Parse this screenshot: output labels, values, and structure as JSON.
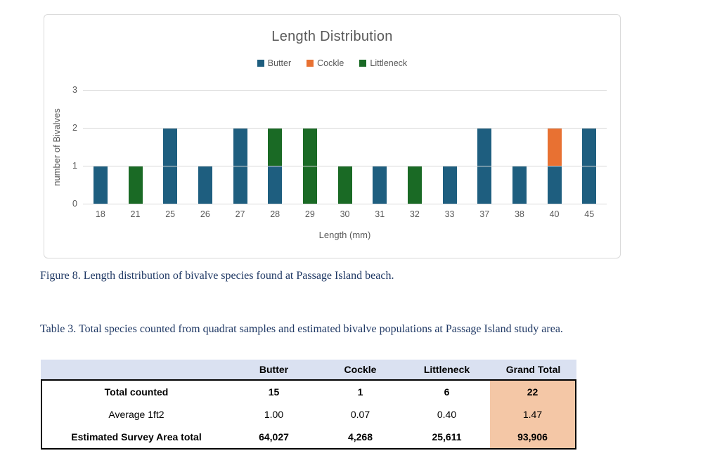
{
  "chart_data": {
    "type": "bar",
    "stacked": true,
    "title": "Length Distribution",
    "categories": [
      "18",
      "21",
      "25",
      "26",
      "27",
      "28",
      "29",
      "30",
      "31",
      "32",
      "33",
      "37",
      "38",
      "40",
      "45"
    ],
    "series": [
      {
        "name": "Butter",
        "color": "#1e5e7f",
        "values": [
          1,
          0,
          2,
          1,
          2,
          1,
          0,
          0,
          1,
          0,
          1,
          2,
          1,
          1,
          2
        ]
      },
      {
        "name": "Cockle",
        "color": "#e87132",
        "values": [
          0,
          0,
          0,
          0,
          0,
          0,
          0,
          0,
          0,
          0,
          0,
          0,
          0,
          1,
          0
        ]
      },
      {
        "name": "Littleneck",
        "color": "#1a6a25",
        "values": [
          0,
          1,
          0,
          0,
          0,
          1,
          2,
          1,
          0,
          1,
          0,
          0,
          0,
          0,
          0
        ]
      }
    ],
    "xlabel": "Length (mm)",
    "ylabel": "number of Bivalves",
    "ylim": [
      0,
      3
    ],
    "yticks": [
      0,
      1,
      2,
      3
    ],
    "grid": true,
    "legend_position": "top"
  },
  "figure_caption": "Figure 8. Length distribution of bivalve species found at Passage Island beach.",
  "table_caption": "Table 3. Total species counted from quadrat samples and estimated bivalve populations at Passage Island study area.",
  "table": {
    "columns": [
      "",
      "Butter",
      "Cockle",
      "Littleneck",
      "Grand Total"
    ],
    "rows": [
      {
        "label": "Total counted",
        "values": [
          "15",
          "1",
          "6",
          "22"
        ],
        "bold": true
      },
      {
        "label": "Average 1ft2",
        "values": [
          "1.00",
          "0.07",
          "0.40",
          "1.47"
        ],
        "bold": false
      },
      {
        "label": "Estimated Survey Area total",
        "values": [
          "64,027",
          "4,268",
          "25,611",
          "93,906"
        ],
        "bold": true
      }
    ],
    "header_bg": "#dae1f1",
    "total_col_bg": "#f4c7a6"
  },
  "colors": {
    "gridline": "#d9d9d9",
    "chart_border": "#d9d9d9",
    "chart_text": "#595959",
    "caption_text": "#1f3864"
  }
}
